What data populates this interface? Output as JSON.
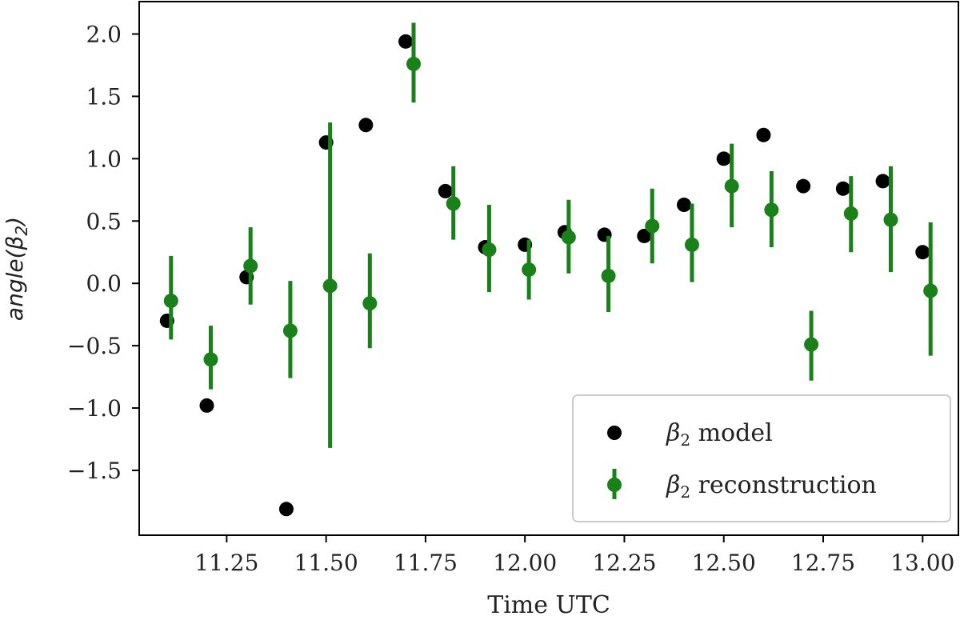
{
  "chart_data": {
    "type": "scatter",
    "title": "",
    "xlabel": "Time UTC",
    "ylabel": "angle(β₂)",
    "ylabel_func": "angle(",
    "ylabel_sym": "β",
    "ylabel_sub": "2",
    "ylabel_close": ")",
    "xlim": [
      11.03,
      13.09
    ],
    "ylim": [
      -2.02,
      2.26
    ],
    "xticks": [
      11.25,
      11.5,
      11.75,
      12.0,
      12.25,
      12.5,
      12.75,
      13.0
    ],
    "xtick_labels": [
      "11.25",
      "11.50",
      "11.75",
      "12.00",
      "12.25",
      "12.50",
      "12.75",
      "13.00"
    ],
    "yticks": [
      2.0,
      1.5,
      1.0,
      0.5,
      0.0,
      -0.5,
      -1.0,
      -1.5
    ],
    "ytick_labels": [
      "2.0",
      "1.5",
      "1.0",
      "0.5",
      "0.0",
      "−0.5",
      "−1.0",
      "−1.5"
    ],
    "grid": false,
    "legend_position": "bottom-right",
    "series": [
      {
        "name": "β₂ model",
        "legend_sym": "β",
        "legend_sub": "2",
        "legend_text": " model",
        "color": "#000000",
        "marker": "circle",
        "x": [
          11.1,
          11.2,
          11.3,
          11.4,
          11.5,
          11.6,
          11.7,
          11.8,
          11.9,
          12.0,
          12.1,
          12.2,
          12.3,
          12.4,
          12.5,
          12.6,
          12.7,
          12.8,
          12.9,
          13.0
        ],
        "y": [
          -0.3,
          -0.98,
          0.05,
          -1.81,
          1.13,
          1.27,
          1.94,
          0.74,
          0.29,
          0.31,
          0.41,
          0.39,
          0.38,
          0.63,
          1.0,
          1.19,
          0.78,
          0.76,
          0.82,
          0.25
        ]
      },
      {
        "name": "β₂ reconstruction",
        "legend_sym": "β",
        "legend_sub": "2",
        "legend_text": " reconstruction",
        "color": "#1a8019",
        "marker": "circle-errorbar",
        "x": [
          11.11,
          11.21,
          11.31,
          11.41,
          11.51,
          11.61,
          11.72,
          11.82,
          11.91,
          12.01,
          12.11,
          12.21,
          12.32,
          12.42,
          12.52,
          12.62,
          12.72,
          12.82,
          12.92,
          13.02
        ],
        "y": [
          -0.14,
          -0.61,
          0.14,
          -0.38,
          -0.02,
          -0.16,
          1.76,
          0.64,
          0.27,
          0.11,
          0.37,
          0.06,
          0.46,
          0.31,
          0.78,
          0.59,
          -0.49,
          0.56,
          0.51,
          -0.06
        ],
        "yerr_low": [
          0.31,
          0.24,
          0.31,
          0.38,
          1.3,
          0.36,
          0.31,
          0.29,
          0.34,
          0.24,
          0.29,
          0.29,
          0.3,
          0.3,
          0.33,
          0.3,
          0.29,
          0.31,
          0.42,
          0.52
        ],
        "yerr_high": [
          0.36,
          0.27,
          0.31,
          0.4,
          1.31,
          0.4,
          0.33,
          0.3,
          0.36,
          0.24,
          0.3,
          0.32,
          0.3,
          0.33,
          0.34,
          0.31,
          0.27,
          0.3,
          0.43,
          0.55
        ]
      }
    ]
  }
}
